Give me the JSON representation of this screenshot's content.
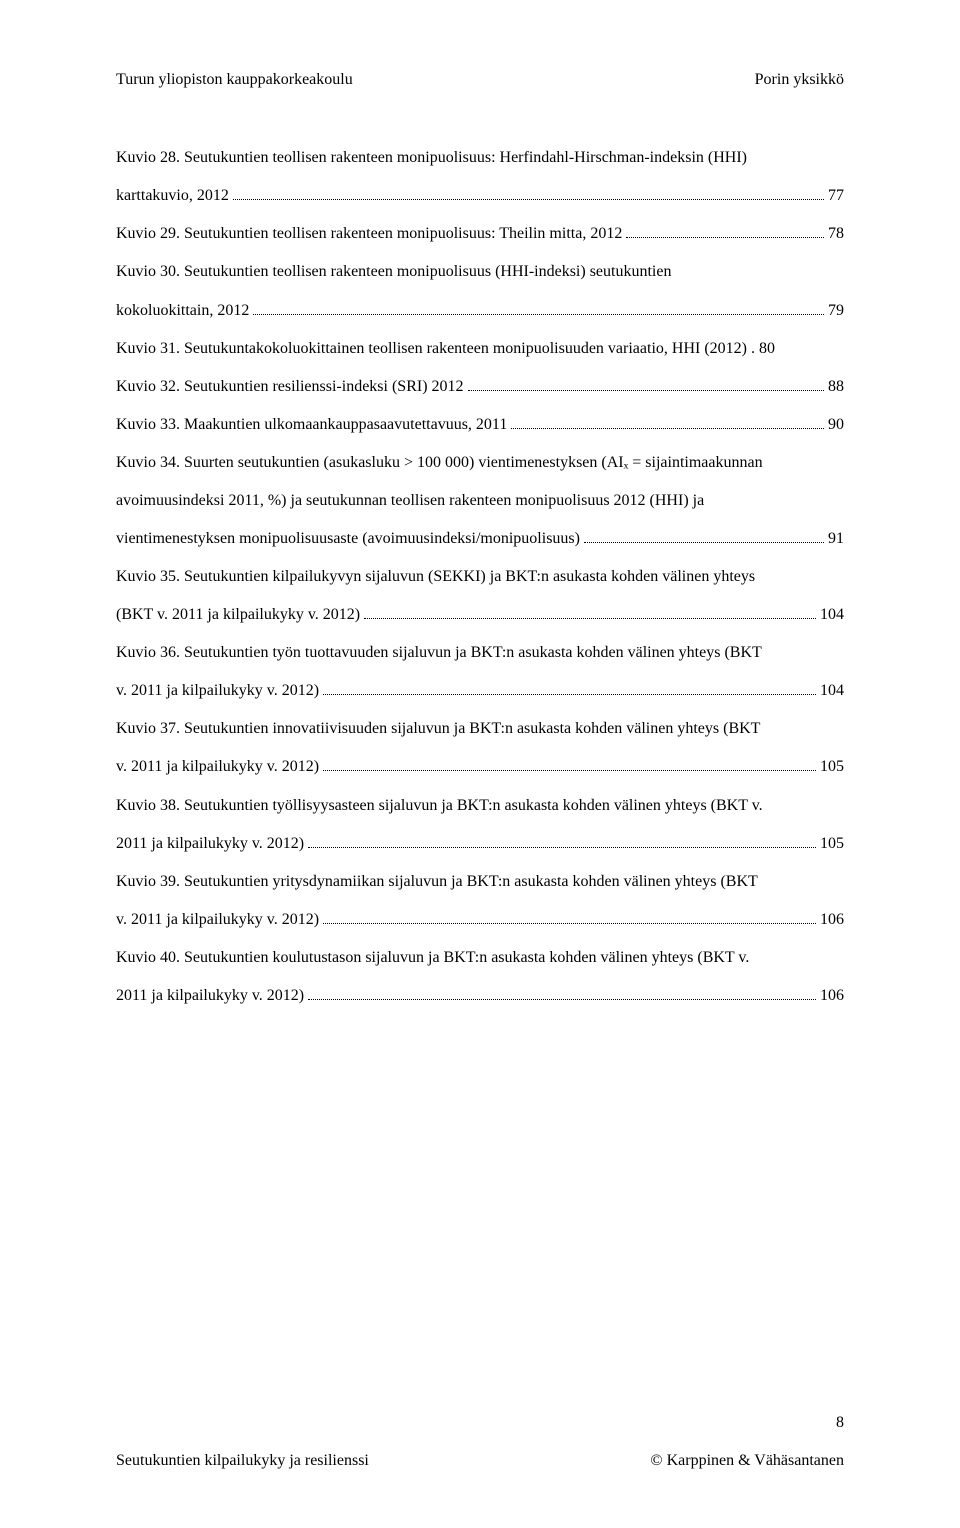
{
  "header": {
    "left": "Turun yliopiston kauppakorkeakoulu",
    "right": "Porin yksikkö"
  },
  "entries": [
    {
      "lines": [
        "Kuvio 28. Seutukuntien teollisen rakenteen monipuolisuus: Herfindahl-Hirschman-indeksin (HHI)",
        "karttakuvio, 2012"
      ],
      "page": "77"
    },
    {
      "lines": [
        "Kuvio 29. Seutukuntien teollisen rakenteen monipuolisuus: Theilin mitta, 2012"
      ],
      "page": "78"
    },
    {
      "lines": [
        "Kuvio 30. Seutukuntien teollisen rakenteen monipuolisuus (HHI-indeksi) seutukuntien",
        "kokoluokittain, 2012"
      ],
      "page": "79"
    },
    {
      "lines": [
        "Kuvio 31. Seutukuntakokoluokittainen teollisen rakenteen monipuolisuuden variaatio, HHI (2012) . 80"
      ],
      "page": null
    },
    {
      "lines": [
        "Kuvio 32. Seutukuntien resilienssi-indeksi (SRI) 2012"
      ],
      "page": "88"
    },
    {
      "lines": [
        "Kuvio 33. Maakuntien ulkomaankauppasaavutettavuus, 2011"
      ],
      "page": "90"
    },
    {
      "lines": [
        "Kuvio 34. Suurten seutukuntien (asukasluku > 100 000) vientimenestyksen (AIₓ = sijaintimaakunnan",
        "avoimuusindeksi 2011, %) ja seutukunnan teollisen rakenteen monipuolisuus 2012 (HHI) ja",
        "vientimenestyksen monipuolisuusaste (avoimuusindeksi/monipuolisuus)"
      ],
      "page": "91"
    },
    {
      "lines": [
        "Kuvio 35. Seutukuntien kilpailukyvyn sijaluvun (SEKKI) ja BKT:n asukasta kohden välinen yhteys",
        "(BKT v. 2011 ja kilpailukyky v. 2012)"
      ],
      "page": "104"
    },
    {
      "lines": [
        "Kuvio 36. Seutukuntien työn tuottavuuden sijaluvun ja BKT:n asukasta kohden välinen yhteys (BKT",
        "v. 2011 ja kilpailukyky v. 2012)"
      ],
      "page": "104"
    },
    {
      "lines": [
        "Kuvio 37. Seutukuntien innovatiivisuuden sijaluvun ja BKT:n asukasta kohden välinen yhteys (BKT",
        "v. 2011 ja kilpailukyky v. 2012)"
      ],
      "page": "105"
    },
    {
      "lines": [
        "Kuvio 38. Seutukuntien työllisyysasteen sijaluvun ja BKT:n asukasta kohden välinen yhteys (BKT v.",
        "2011 ja kilpailukyky v. 2012)"
      ],
      "page": "105"
    },
    {
      "lines": [
        "Kuvio 39. Seutukuntien yritysdynamiikan sijaluvun ja BKT:n asukasta kohden välinen yhteys (BKT",
        "v. 2011 ja kilpailukyky v. 2012)"
      ],
      "page": "106"
    },
    {
      "lines": [
        "Kuvio 40. Seutukuntien koulutustason sijaluvun ja BKT:n asukasta kohden välinen yhteys (BKT v.",
        "2011 ja kilpailukyky v. 2012)"
      ],
      "page": "106"
    }
  ],
  "footer": {
    "left": "Seutukuntien kilpailukyky ja resilienssi",
    "right": "© Karppinen & Vähäsantanen"
  },
  "page_number": "8"
}
